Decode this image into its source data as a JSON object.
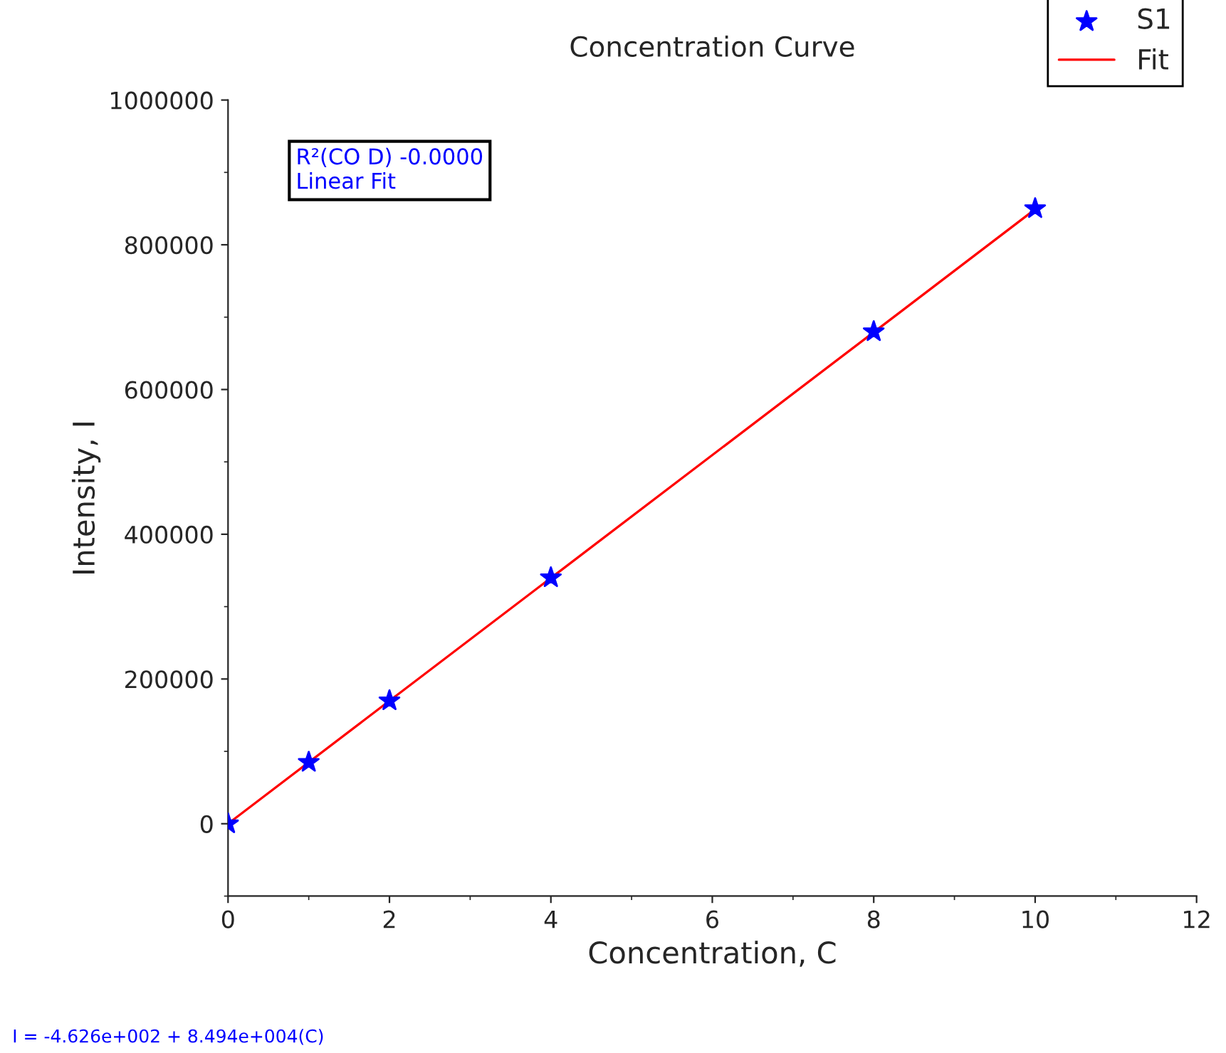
{
  "chart_data": {
    "type": "scatter",
    "title": "Concentration Curve",
    "xlabel": "Concentration, C",
    "ylabel": "Intensity, I",
    "series": [
      {
        "name": "S1",
        "color": "#0000ff",
        "marker": "star",
        "x": [
          0,
          1,
          2,
          4,
          8,
          10
        ],
        "values": [
          0,
          85000,
          170000,
          340000,
          680000,
          850000
        ]
      },
      {
        "name": "Fit",
        "type": "line",
        "color": "#ff0000",
        "line_style": "solid",
        "x": [
          0,
          10
        ],
        "values": [
          0,
          849000
        ]
      }
    ],
    "xlim": [
      0,
      12
    ],
    "xticks": [
      0,
      2,
      4,
      6,
      8,
      10,
      12
    ],
    "ylim": [
      -100000,
      1000000
    ],
    "yticks": [
      0,
      200000,
      400000,
      600000,
      800000,
      1000000
    ],
    "grid": false,
    "legend": "top right",
    "annotations": [
      "R²(CO D) -0.0000\nLinear Fit",
      "I = -4.626e+002 + 8.494e+004(C)"
    ]
  }
}
